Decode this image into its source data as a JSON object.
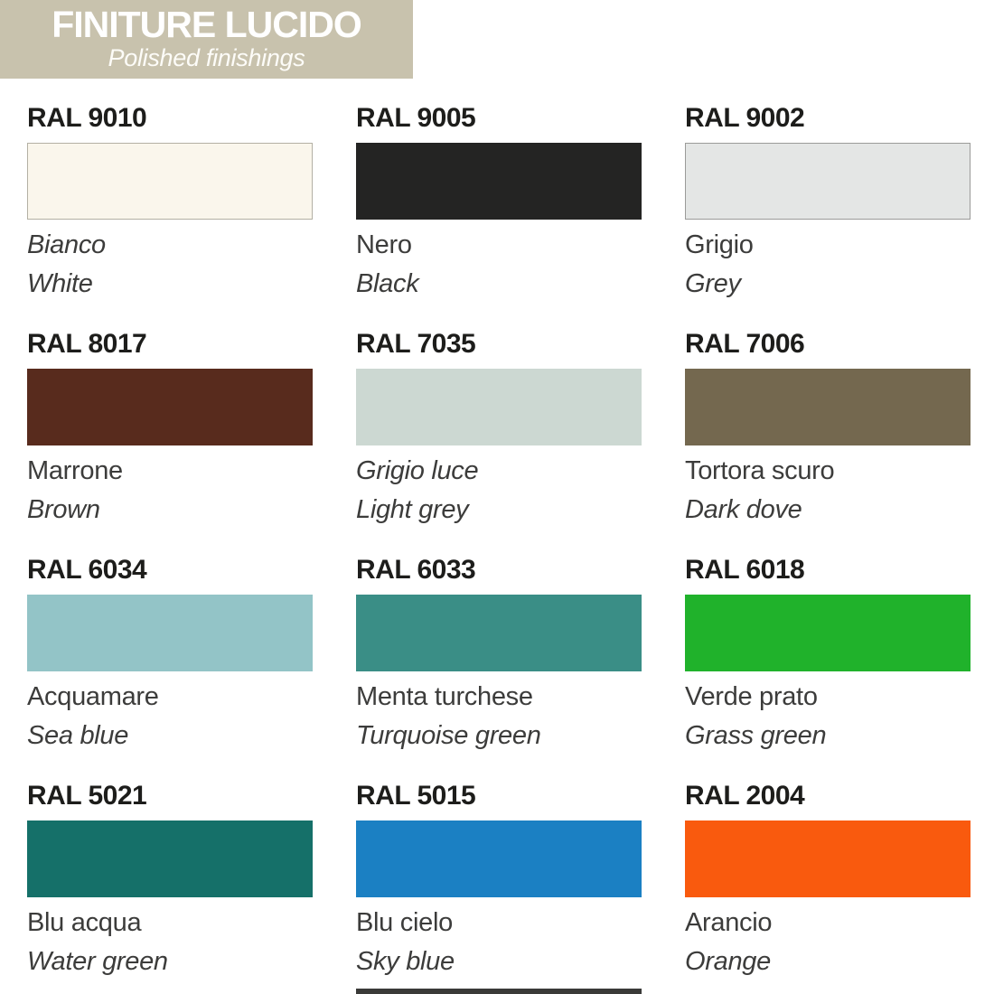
{
  "header": {
    "title": "FINITURE LUCIDO",
    "subtitle": "Polished finishings",
    "banner_color": "#c8c2ad",
    "text_color": "#ffffff"
  },
  "palette": {
    "label_color": "#1d1d1b",
    "name_color": "#3c3c3b",
    "swatches": [
      {
        "code": "RAL 9010",
        "name_it": "Bianco",
        "name_en": "White",
        "hex": "#faf6ec",
        "border": "#b3b0a4",
        "it_italic": true
      },
      {
        "code": "RAL 9005",
        "name_it": "Nero",
        "name_en": "Black",
        "hex": "#242423",
        "border": "#242423",
        "it_italic": false
      },
      {
        "code": "RAL 9002",
        "name_it": "Grigio",
        "name_en": "Grey",
        "hex": "#e4e6e5",
        "border": "#9b9b99",
        "it_italic": false
      },
      {
        "code": "RAL 8017",
        "name_it": "Marrone",
        "name_en": "Brown",
        "hex": "#582b1d",
        "border": "#582b1d",
        "it_italic": false
      },
      {
        "code": "RAL 7035",
        "name_it": "Grigio luce",
        "name_en": "Light grey",
        "hex": "#ccd8d2",
        "border": "#ccd8d2",
        "it_italic": true
      },
      {
        "code": "RAL 7006",
        "name_it": "Tortora scuro",
        "name_en": "Dark dove",
        "hex": "#74684f",
        "border": "#74684f",
        "it_italic": false
      },
      {
        "code": "RAL 6034",
        "name_it": "Acquamare",
        "name_en": "Sea blue",
        "hex": "#93c4c7",
        "border": "#93c4c7",
        "it_italic": false
      },
      {
        "code": "RAL 6033",
        "name_it": "Menta turchese",
        "name_en": "Turquoise green",
        "hex": "#3a8e86",
        "border": "#3a8e86",
        "it_italic": false
      },
      {
        "code": "RAL 6018",
        "name_it": "Verde prato",
        "name_en": "Grass green",
        "hex": "#20b22b",
        "border": "#20b22b",
        "it_italic": false
      },
      {
        "code": "RAL 5021",
        "name_it": "Blu acqua",
        "name_en": "Water green",
        "hex": "#157069",
        "border": "#157069",
        "it_italic": false
      },
      {
        "code": "RAL 5015",
        "name_it": "Blu cielo",
        "name_en": "Sky blue",
        "hex": "#1b80c3",
        "border": "#1b80c3",
        "it_italic": false
      },
      {
        "code": "RAL 2004",
        "name_it": "Arancio",
        "name_en": "Orange",
        "hex": "#f95a0e",
        "border": "#f95a0e",
        "it_italic": false
      }
    ]
  },
  "footer": {
    "cropped_bar_color": "#3a3a38"
  }
}
